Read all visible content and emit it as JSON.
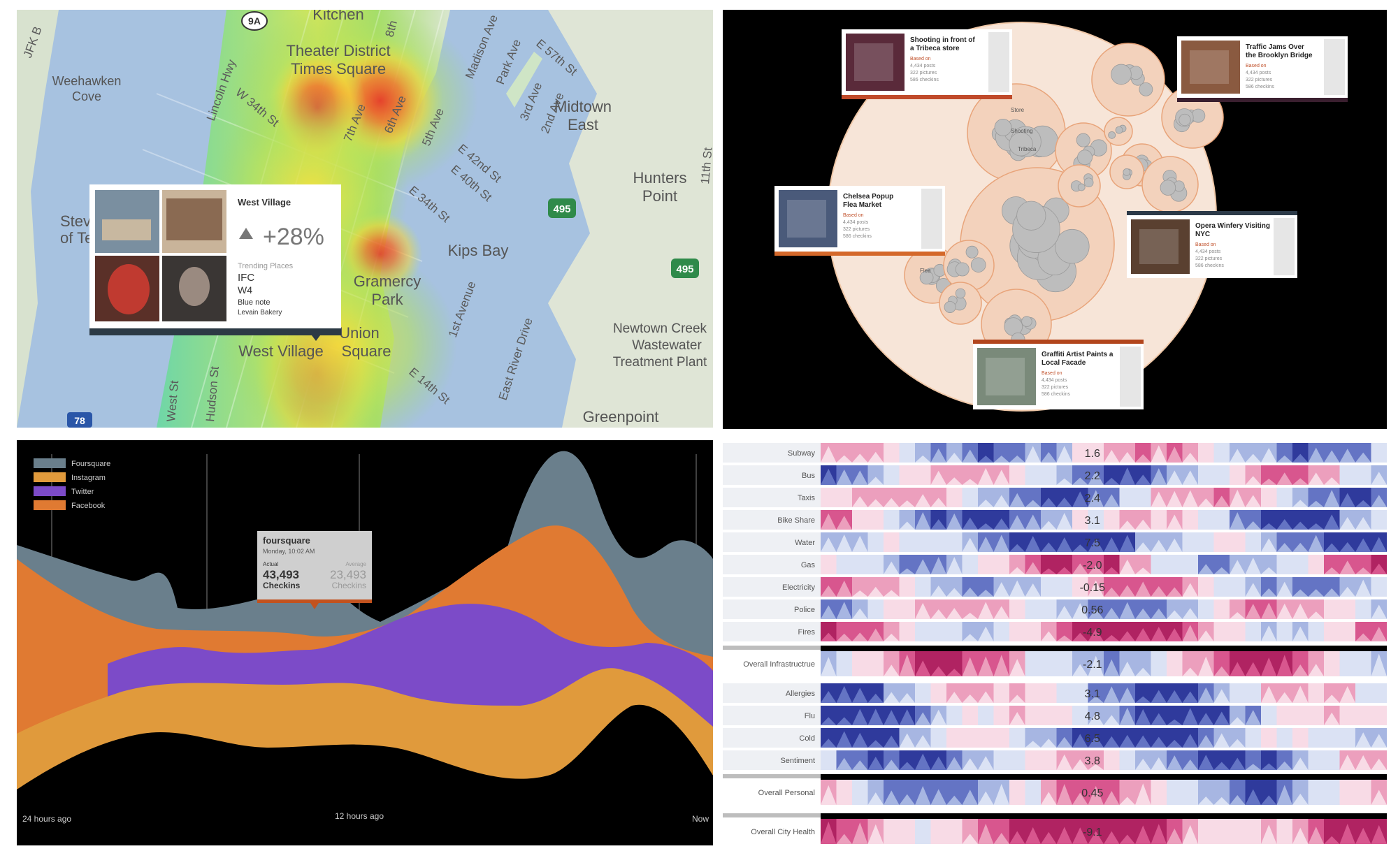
{
  "map": {
    "labels": [
      {
        "id": "kitchen",
        "text": "Kitchen"
      },
      {
        "id": "theater",
        "text": "Theater District"
      },
      {
        "id": "times",
        "text": "Times Square"
      },
      {
        "id": "weehawken1",
        "text": "Weehawken"
      },
      {
        "id": "weehawken2",
        "text": "Cove"
      },
      {
        "id": "midtown1",
        "text": "Midtown"
      },
      {
        "id": "midtown2",
        "text": "East"
      },
      {
        "id": "hunters1",
        "text": "Hunters"
      },
      {
        "id": "hunters2",
        "text": "Point"
      },
      {
        "id": "kips",
        "text": "Kips Bay"
      },
      {
        "id": "gramercy1",
        "text": "Gramercy"
      },
      {
        "id": "gramercy2",
        "text": "Park"
      },
      {
        "id": "union1",
        "text": "Union"
      },
      {
        "id": "union2",
        "text": "Square"
      },
      {
        "id": "westvillage",
        "text": "West Village"
      },
      {
        "id": "newtown1",
        "text": "Newtown Creek"
      },
      {
        "id": "newtown2",
        "text": "Wastewater"
      },
      {
        "id": "newtown3",
        "text": "Treatment Plant"
      },
      {
        "id": "greenpoint",
        "text": "Greenpoint"
      },
      {
        "id": "stev",
        "text": "Stev"
      },
      {
        "id": "ofte",
        "text": "of Te"
      },
      {
        "id": "lincoln",
        "text": "Lincoln Hwy"
      },
      {
        "id": "w34",
        "text": "W 34th St"
      },
      {
        "id": "7ave",
        "text": "7th Ave"
      },
      {
        "id": "6ave",
        "text": "6th Ave"
      },
      {
        "id": "5ave",
        "text": "5th Ave"
      },
      {
        "id": "madison",
        "text": "Madison Ave"
      },
      {
        "id": "parkave",
        "text": "Park Ave"
      },
      {
        "id": "3ave",
        "text": "3rd Ave"
      },
      {
        "id": "2ave",
        "text": "2nd Ave"
      },
      {
        "id": "e42",
        "text": "E 42nd St"
      },
      {
        "id": "e40",
        "text": "E 40th St"
      },
      {
        "id": "e34",
        "text": "E 34th St"
      },
      {
        "id": "e57",
        "text": "E 57th St"
      },
      {
        "id": "1ave",
        "text": "1st Avenue"
      },
      {
        "id": "fdr",
        "text": "East River Drive"
      },
      {
        "id": "e14",
        "text": "E 14th St"
      },
      {
        "id": "westst",
        "text": "West St"
      },
      {
        "id": "hudson",
        "text": "Hudson St"
      },
      {
        "id": "11st",
        "text": "11th St"
      },
      {
        "id": "8th",
        "text": "8th"
      },
      {
        "id": "9a",
        "text": "9A"
      },
      {
        "id": "495a",
        "text": "495"
      },
      {
        "id": "495b",
        "text": "495"
      },
      {
        "id": "78",
        "text": "78"
      },
      {
        "id": "jfk",
        "text": "JFK B"
      }
    ],
    "popup": {
      "title": "West Village",
      "change": "+28%",
      "trending_label": "Trending Places",
      "places": [
        "IFC",
        "W4",
        "Blue note",
        "Levain Bakery"
      ]
    }
  },
  "bubble": {
    "cards": [
      {
        "title1": "Shooting in front of",
        "title2": "a Tribeca store",
        "sub": [
          "Based on",
          "4,434 posts",
          "322 pictures",
          "586 checkins"
        ]
      },
      {
        "title1": "Traffic Jams Over",
        "title2": "the Brooklyn Bridge",
        "sub": [
          "Based on",
          "4,434 posts",
          "322 pictures",
          "586 checkins"
        ]
      },
      {
        "title1": "Chelsea Popup",
        "title2": "Flea Market",
        "sub": [
          "Based on",
          "4,434 posts",
          "322 pictures",
          "586 checkins"
        ]
      },
      {
        "title1": "Opera Winfery Visiting",
        "title2": "NYC",
        "sub": [
          "Based on",
          "4,434 posts",
          "322 pictures",
          "586 checkins"
        ]
      },
      {
        "title1": "Graffiti Artist Paints a",
        "title2": "Local Facade",
        "sub": [
          "Based on",
          "4,434 posts",
          "322 pictures",
          "586 checkins"
        ]
      }
    ],
    "labels": [
      "Store",
      "Shooting",
      "Tribeca",
      "Flea"
    ]
  },
  "stream": {
    "legend": [
      "Foursquare",
      "Instagram",
      "Twitter",
      "Facebook"
    ],
    "colors": [
      "#6a7f8c",
      "#e09a3c",
      "#7c4bc8",
      "#e07a32"
    ],
    "tooltip": {
      "service": "foursquare",
      "time": "Monday, 10:02 AM",
      "actual_label": "Actual",
      "actual_value": "43,493",
      "average_label": "Average",
      "average_value": "23,493",
      "unit": "Checkins"
    },
    "axis": [
      "24 hours ago",
      "12 hours ago",
      "Now"
    ]
  },
  "heat": {
    "rows": [
      {
        "label": "Subway",
        "value": "1.6"
      },
      {
        "label": "Bus",
        "value": "2.2"
      },
      {
        "label": "Taxis",
        "value": "2.4"
      },
      {
        "label": "Bike Share",
        "value": "3.1"
      },
      {
        "label": "Water",
        "value": "7.5"
      },
      {
        "label": "Gas",
        "value": "-2.0"
      },
      {
        "label": "Electricity",
        "value": "-0.15"
      },
      {
        "label": "Police",
        "value": "0.56"
      },
      {
        "label": "Fires",
        "value": "-4.9"
      },
      {
        "label": "Overall Infrastructrue",
        "value": "-2.1"
      },
      {
        "label": "Allergies",
        "value": "3.1"
      },
      {
        "label": "Flu",
        "value": "4.8"
      },
      {
        "label": "Cold",
        "value": "6.5"
      },
      {
        "label": "Sentiment",
        "value": "3.8"
      },
      {
        "label": "Overall Personal",
        "value": "0.45"
      },
      {
        "label": "Overall City Health",
        "value": "-9.1"
      }
    ]
  },
  "chart_data": [
    {
      "type": "heatmap",
      "title": "",
      "rows": [
        "Subway",
        "Bus",
        "Taxis",
        "Bike Share",
        "Water",
        "Gas",
        "Electricity",
        "Police",
        "Fires",
        "Overall Infrastructrue",
        "Allergies",
        "Flu",
        "Cold",
        "Sentiment",
        "Overall Personal",
        "Overall City Health"
      ],
      "values": [
        1.6,
        2.2,
        2.4,
        3.1,
        7.5,
        -2.0,
        -0.15,
        0.56,
        -4.9,
        -2.1,
        3.1,
        4.8,
        6.5,
        3.8,
        0.45,
        -9.1
      ],
      "colors": {
        "positive": "#3a3f9e",
        "negative": "#c0306a"
      }
    },
    {
      "type": "area",
      "title": "",
      "series": [
        {
          "name": "Foursquare"
        },
        {
          "name": "Instagram"
        },
        {
          "name": "Twitter"
        },
        {
          "name": "Facebook"
        }
      ],
      "x": [
        "24 hours ago",
        "12 hours ago",
        "Now"
      ]
    }
  ]
}
